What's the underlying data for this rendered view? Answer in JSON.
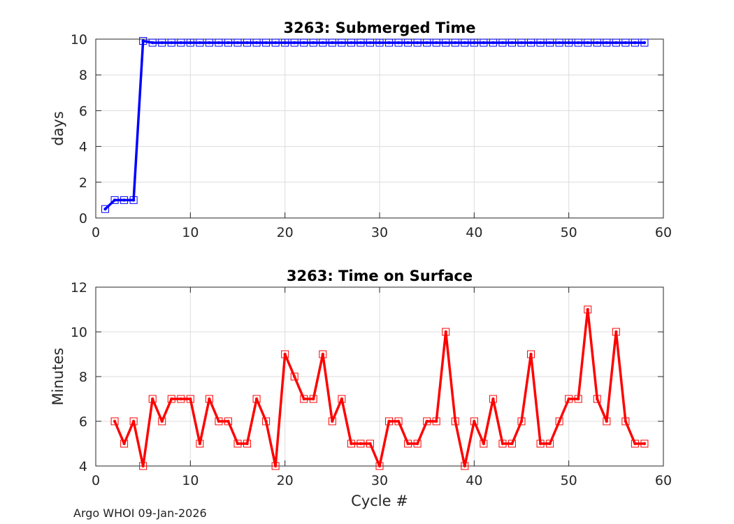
{
  "footer": "Argo WHOI 09-Jan-2026",
  "chart_data": [
    {
      "type": "line",
      "title": "3263: Submerged Time",
      "xlabel": "",
      "ylabel": "days",
      "xlim": [
        0,
        60
      ],
      "ylim": [
        0,
        10
      ],
      "xticks": [
        0,
        10,
        20,
        30,
        40,
        50,
        60
      ],
      "yticks": [
        0,
        2,
        4,
        6,
        8,
        10
      ],
      "grid": true,
      "marker": "square",
      "color": "#0000ff",
      "series": [
        {
          "x": [
            1,
            2,
            3,
            4,
            5,
            6,
            7,
            8,
            9,
            10,
            11,
            12,
            13,
            14,
            15,
            16,
            17,
            18,
            19,
            20,
            21,
            22,
            23,
            24,
            25,
            26,
            27,
            28,
            29,
            30,
            31,
            32,
            33,
            34,
            35,
            36,
            37,
            38,
            39,
            40,
            41,
            42,
            43,
            44,
            45,
            46,
            47,
            48,
            49,
            50,
            51,
            52,
            53,
            54,
            55,
            56,
            57,
            58
          ],
          "y": [
            0.5,
            1.0,
            1.0,
            1.0,
            9.9,
            9.8,
            9.8,
            9.8,
            9.8,
            9.8,
            9.8,
            9.8,
            9.8,
            9.8,
            9.8,
            9.8,
            9.8,
            9.8,
            9.8,
            9.8,
            9.8,
            9.8,
            9.8,
            9.8,
            9.8,
            9.8,
            9.8,
            9.8,
            9.8,
            9.8,
            9.8,
            9.8,
            9.8,
            9.8,
            9.8,
            9.8,
            9.8,
            9.8,
            9.8,
            9.8,
            9.8,
            9.8,
            9.8,
            9.8,
            9.8,
            9.8,
            9.8,
            9.8,
            9.8,
            9.8,
            9.8,
            9.8,
            9.8,
            9.8,
            9.8,
            9.8,
            9.8,
            9.8
          ]
        }
      ]
    },
    {
      "type": "line",
      "title": "3263: Time on Surface",
      "xlabel": "Cycle #",
      "ylabel": "Minutes",
      "xlim": [
        0,
        60
      ],
      "ylim": [
        4,
        12
      ],
      "xticks": [
        0,
        10,
        20,
        30,
        40,
        50,
        60
      ],
      "yticks": [
        4,
        6,
        8,
        10,
        12
      ],
      "grid": true,
      "marker": "square",
      "color": "#ff0000",
      "series": [
        {
          "x": [
            2,
            3,
            4,
            5,
            6,
            7,
            8,
            9,
            10,
            11,
            12,
            13,
            14,
            15,
            16,
            17,
            18,
            19,
            20,
            21,
            22,
            23,
            24,
            25,
            26,
            27,
            28,
            29,
            30,
            31,
            32,
            33,
            34,
            35,
            36,
            37,
            38,
            39,
            40,
            41,
            42,
            43,
            44,
            45,
            46,
            47,
            48,
            49,
            50,
            51,
            52,
            53,
            54,
            55,
            56,
            57,
            58
          ],
          "y": [
            6,
            5,
            6,
            4,
            7,
            6,
            7,
            7,
            7,
            5,
            7,
            6,
            6,
            5,
            5,
            7,
            6,
            4,
            9,
            8,
            7,
            7,
            9,
            6,
            7,
            5,
            5,
            5,
            4,
            6,
            6,
            5,
            5,
            6,
            6,
            10,
            6,
            4,
            6,
            5,
            7,
            5,
            5,
            6,
            9,
            5,
            5,
            6,
            7,
            7,
            11,
            7,
            6,
            10,
            6,
            5,
            5
          ]
        }
      ]
    }
  ]
}
